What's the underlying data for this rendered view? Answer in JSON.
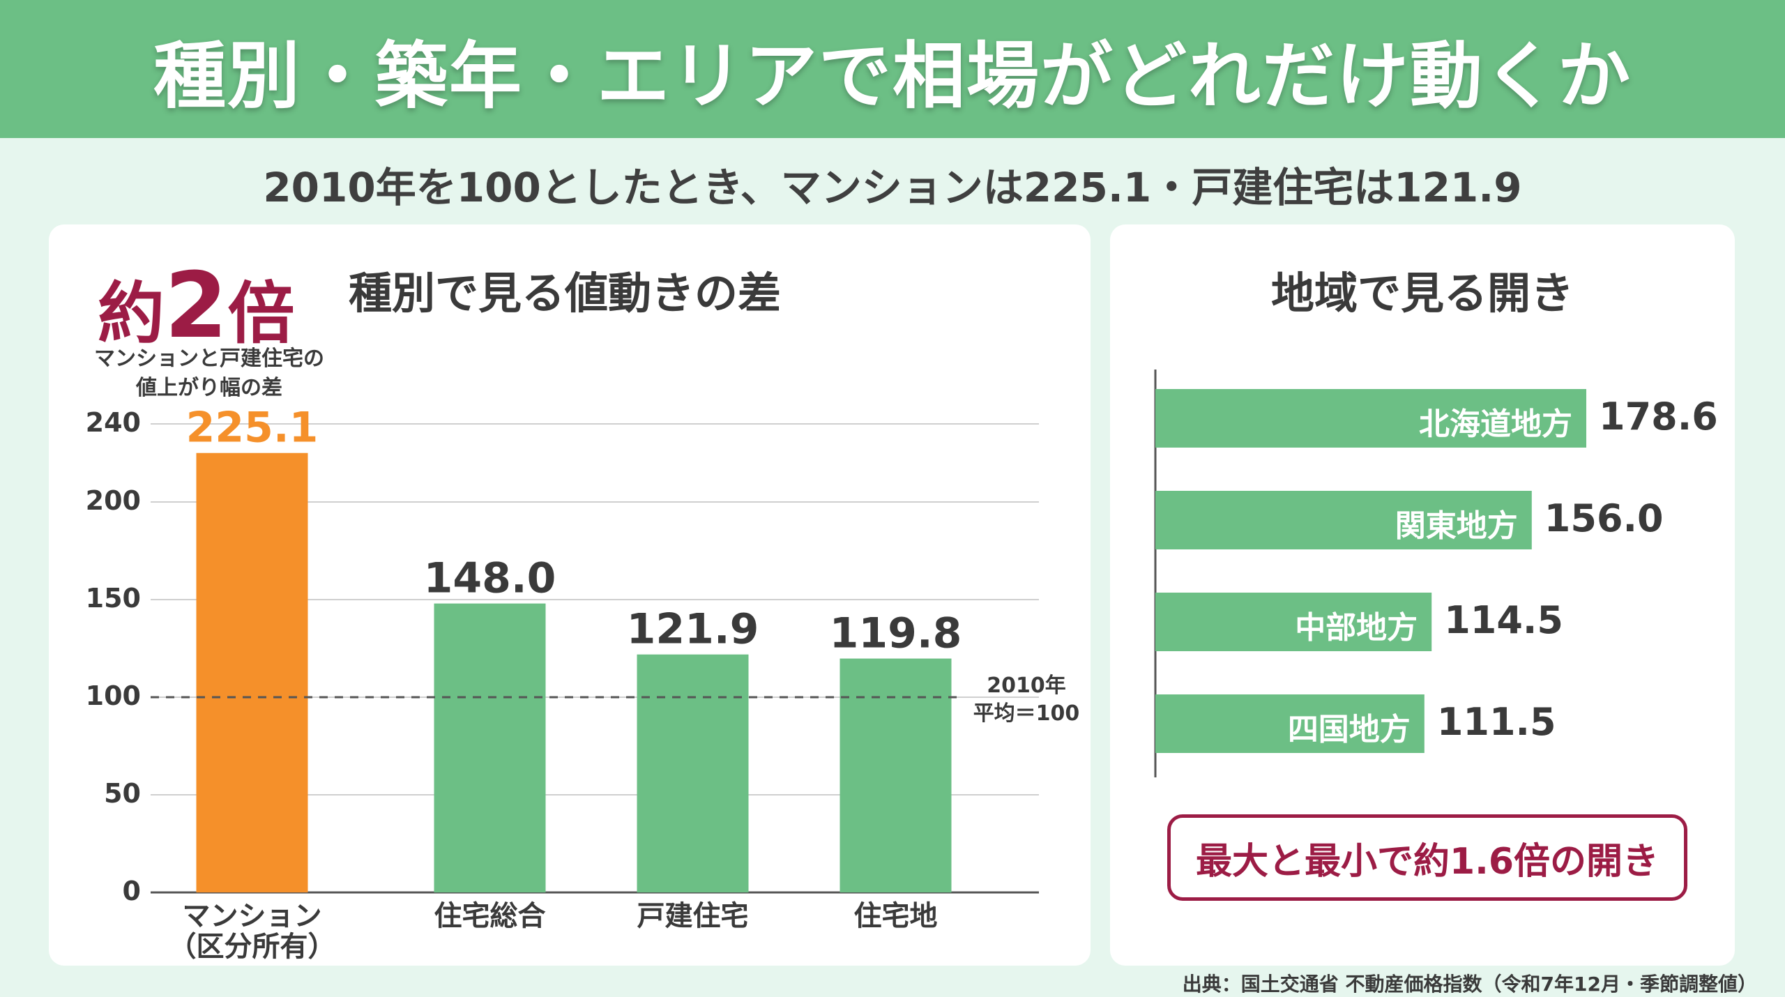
{
  "header": {
    "title": "種別・築年・エリアで相場がどれだけ動くか"
  },
  "subtitle": "2010年を100としたとき、マンションは225.1・戸建住宅は121.9",
  "left_panel": {
    "badge_prefix": "約",
    "badge_number": "2",
    "badge_suffix": "倍",
    "badge_note_line1": "マンションと戸建住宅の",
    "badge_note_line2": "値上がり幅の差",
    "title": "種別で見る値動きの差",
    "reference_label_line1": "2010年",
    "reference_label_line2": "平均＝100"
  },
  "right_panel": {
    "title": "地域で見る開き",
    "callout": "最大と最小で約1.6倍の開き"
  },
  "source": "出典：国土交通省 不動産価格指数（令和7年12月・季節調整値）",
  "colors": {
    "header_bg": "#6cbf85",
    "bar_green": "#6cbf85",
    "bar_orange": "#f5902a",
    "accent_crimson": "#9c1c45",
    "page_bg": "#e6f6ee"
  },
  "chart_data": [
    {
      "type": "bar",
      "title": "種別で見る値動きの差",
      "categories": [
        "マンション（区分所有）",
        "住宅総合",
        "戸建住宅",
        "住宅地"
      ],
      "category_lines": [
        [
          "マンション",
          "（区分所有）"
        ],
        [
          "住宅総合"
        ],
        [
          "戸建住宅"
        ],
        [
          "住宅地"
        ]
      ],
      "values": [
        225.1,
        148.0,
        121.9,
        119.8
      ],
      "value_labels": [
        "225.1",
        "148.0",
        "121.9",
        "119.8"
      ],
      "highlight_index": 0,
      "ylim": [
        0,
        240
      ],
      "yticks": [
        "0",
        "50",
        "100",
        "150",
        "200",
        "240"
      ],
      "ytick_values": [
        0,
        50,
        100,
        150,
        200,
        240
      ],
      "reference_line": 100,
      "grid": true
    },
    {
      "type": "bar",
      "orientation": "horizontal",
      "title": "地域で見る開き",
      "categories": [
        "北海道地方",
        "関東地方",
        "中部地方",
        "四国地方"
      ],
      "values": [
        178.6,
        156.0,
        114.5,
        111.5
      ],
      "value_labels": [
        "178.6",
        "156.0",
        "114.5",
        "111.5"
      ]
    }
  ]
}
